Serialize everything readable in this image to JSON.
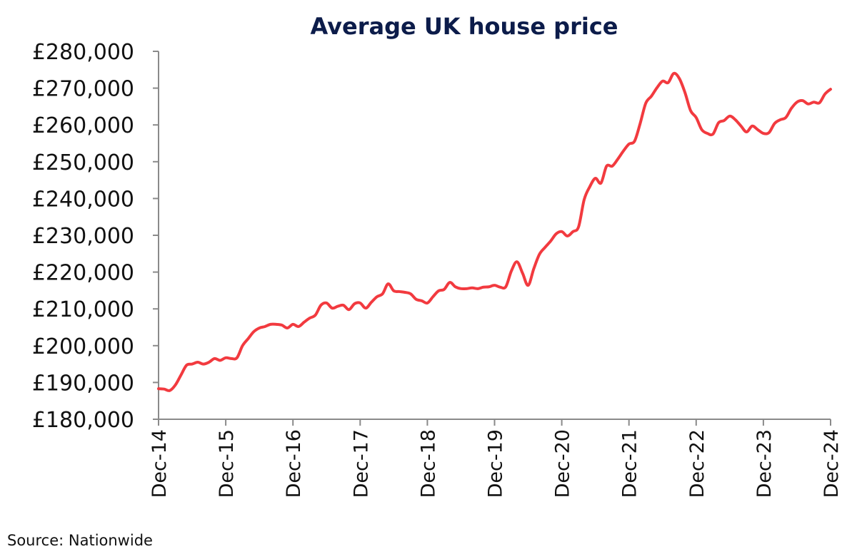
{
  "chart_data": {
    "type": "line",
    "title": "Average UK house price",
    "xlabel": "",
    "ylabel": "",
    "source": "Source: Nationwide",
    "ylim": [
      180000,
      280000
    ],
    "yticks": [
      "£180,000",
      "£190,000",
      "£200,000",
      "£210,000",
      "£220,000",
      "£230,000",
      "£240,000",
      "£250,000",
      "£260,000",
      "£270,000",
      "£280,000"
    ],
    "ytick_values": [
      180000,
      190000,
      200000,
      210000,
      220000,
      230000,
      240000,
      250000,
      260000,
      270000,
      280000
    ],
    "xticks": [
      "Dec-14",
      "Dec-15",
      "Dec-16",
      "Dec-17",
      "Dec-18",
      "Dec-19",
      "Dec-20",
      "Dec-21",
      "Dec-22",
      "Dec-23",
      "Dec-24"
    ],
    "xlim": [
      "2014-12",
      "2024-12"
    ],
    "grid": false,
    "legend": "none",
    "colors": {
      "line": "#f23a3f",
      "title": "#0c1c4a",
      "axis": "#8a8a8a"
    },
    "x": [
      "2014-12",
      "2015-01",
      "2015-02",
      "2015-03",
      "2015-04",
      "2015-05",
      "2015-06",
      "2015-07",
      "2015-08",
      "2015-09",
      "2015-10",
      "2015-11",
      "2015-12",
      "2016-01",
      "2016-02",
      "2016-03",
      "2016-04",
      "2016-05",
      "2016-06",
      "2016-07",
      "2016-08",
      "2016-09",
      "2016-10",
      "2016-11",
      "2016-12",
      "2017-01",
      "2017-02",
      "2017-03",
      "2017-04",
      "2017-05",
      "2017-06",
      "2017-07",
      "2017-08",
      "2017-09",
      "2017-10",
      "2017-11",
      "2017-12",
      "2018-01",
      "2018-02",
      "2018-03",
      "2018-04",
      "2018-05",
      "2018-06",
      "2018-07",
      "2018-08",
      "2018-09",
      "2018-10",
      "2018-11",
      "2018-12",
      "2019-01",
      "2019-02",
      "2019-03",
      "2019-04",
      "2019-05",
      "2019-06",
      "2019-07",
      "2019-08",
      "2019-09",
      "2019-10",
      "2019-11",
      "2019-12",
      "2020-01",
      "2020-02",
      "2020-03",
      "2020-04",
      "2020-05",
      "2020-06",
      "2020-07",
      "2020-08",
      "2020-09",
      "2020-10",
      "2020-11",
      "2020-12",
      "2021-01",
      "2021-02",
      "2021-03",
      "2021-04",
      "2021-05",
      "2021-06",
      "2021-07",
      "2021-08",
      "2021-09",
      "2021-10",
      "2021-11",
      "2021-12",
      "2022-01",
      "2022-02",
      "2022-03",
      "2022-04",
      "2022-05",
      "2022-06",
      "2022-07",
      "2022-08",
      "2022-09",
      "2022-10",
      "2022-11",
      "2022-12",
      "2023-01",
      "2023-02",
      "2023-03",
      "2023-04",
      "2023-05",
      "2023-06",
      "2023-07",
      "2023-08",
      "2023-09",
      "2023-10",
      "2023-11",
      "2023-12",
      "2024-01",
      "2024-02",
      "2024-03",
      "2024-04",
      "2024-05",
      "2024-06",
      "2024-07",
      "2024-08",
      "2024-09",
      "2024-10",
      "2024-11",
      "2024-12"
    ],
    "values": [
      188300,
      188200,
      187800,
      189300,
      192000,
      194700,
      195000,
      195500,
      195000,
      195500,
      196500,
      196000,
      196700,
      196500,
      196700,
      200000,
      201900,
      203800,
      204800,
      205200,
      205800,
      205800,
      205600,
      204800,
      205800,
      205200,
      206400,
      207500,
      208300,
      211000,
      211600,
      210200,
      210700,
      211000,
      209800,
      211400,
      211600,
      210200,
      211800,
      213300,
      214100,
      216800,
      214900,
      214700,
      214500,
      214100,
      212600,
      212200,
      211600,
      213300,
      214900,
      215300,
      217200,
      216000,
      215500,
      215500,
      215700,
      215500,
      215900,
      216000,
      216400,
      215900,
      216000,
      220300,
      222800,
      219700,
      216400,
      220900,
      224800,
      226700,
      228400,
      230400,
      231000,
      229800,
      231000,
      232300,
      239700,
      243200,
      245500,
      244200,
      248800,
      248800,
      250700,
      252900,
      254800,
      255600,
      260400,
      265900,
      267800,
      270100,
      271900,
      271500,
      274000,
      272600,
      268800,
      263900,
      262000,
      258700,
      257700,
      257500,
      260600,
      261200,
      262400,
      261400,
      259700,
      258100,
      259700,
      258700,
      257700,
      257900,
      260400,
      261400,
      262000,
      264500,
      266200,
      266600,
      265700,
      266200,
      266000,
      268400,
      269700
    ]
  }
}
